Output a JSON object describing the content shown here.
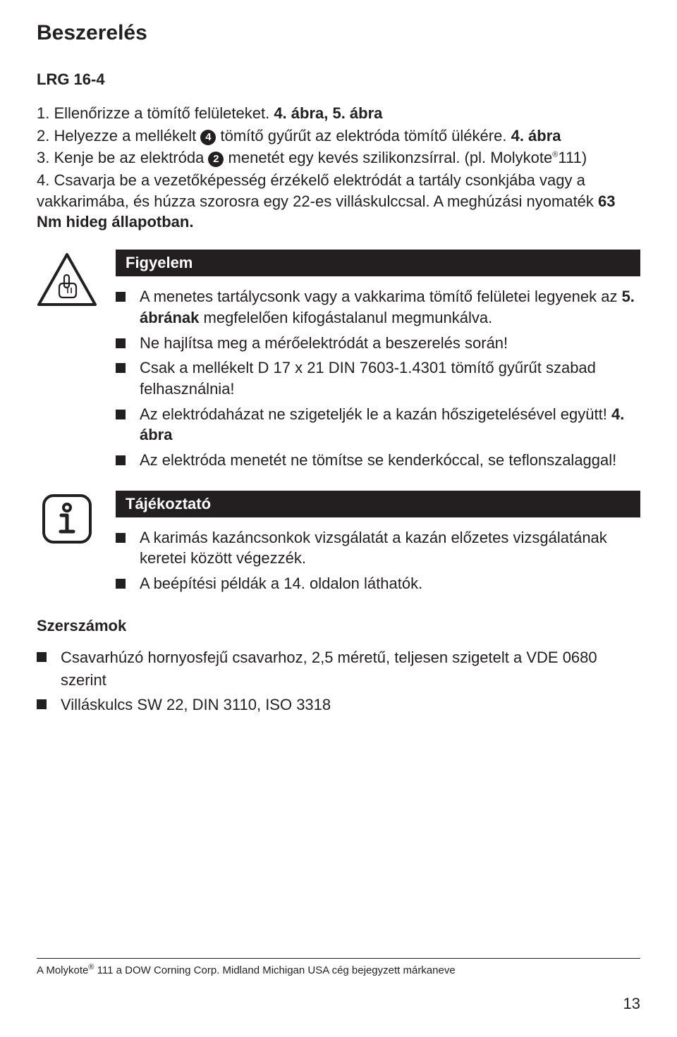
{
  "title": "Beszerelés",
  "subtitle": "LRG 16-4",
  "steps": [
    {
      "num": "1.",
      "pre": "Ellenőrizze a tömítő felületeket. ",
      "bold": "4. ábra, 5. ábra",
      "post": ""
    },
    {
      "num": "2.",
      "pre": "Helyezze a mellékelt ",
      "circ": "4",
      "mid": " tömítő gyűrűt az elektróda tömítő ülékére. ",
      "bold": "4. ábra",
      "post": ""
    },
    {
      "num": "3.",
      "pre": "Kenje be az elektróda ",
      "circ": "2",
      "mid": " menetét egy kevés szilikonzsírral. (pl. Molykote",
      "sup": "®",
      "post": "111)"
    },
    {
      "num": "4.",
      "pre": "Csavarja be a vezetőképesség érzékelő elektródát a tartály csonkjába vagy a vakkarimába, és húzza szorosra egy 22-es villáskulccsal. A meghúzási nyomaték ",
      "bold": "63 Nm hideg állapotban.",
      "post": ""
    }
  ],
  "figyelem": {
    "header": "Figyelem",
    "items": [
      "A menetes tartálycsonk vagy a vakkarima tömítő felületei legyenek az <b>5. ábrának</b> megfelelően kifogástalanul megmunkálva.",
      "Ne hajlítsa meg a mérőelektródát a beszerelés során!",
      "Csak a mellékelt D 17 x 21 DIN 7603-1.4301 tömítő gyűrűt szabad felhasználnia!",
      "Az elektródaházat ne szigeteljék le a kazán hőszigetelésével együtt! <b>4. ábra</b>",
      "Az elektróda menetét ne tömítse se kenderkóccal, se teflonszalaggal!"
    ]
  },
  "tajekoztato": {
    "header": "Tájékoztató",
    "items": [
      "A karimás kazáncsonkok vizsgálatát a kazán előzetes vizsgálatának keretei között végezzék.",
      "A beépítési példák a 14. oldalon láthatók."
    ]
  },
  "tools": {
    "header": "Szerszámok",
    "items": [
      "Csavarhúzó hornyosfejű csavarhoz, 2,5 méretű, teljesen szigetelt a VDE 0680 szerint",
      "Villáskulcs SW 22, DIN 3110, ISO 3318"
    ]
  },
  "footnote_parts": {
    "a": "A Molykote",
    "b": "111 a DOW Corning Corp. Midland Michigan USA cég bejegyzett márkaneve"
  },
  "pagenum": "13",
  "colors": {
    "text": "#231f20",
    "bg": "#ffffff"
  }
}
